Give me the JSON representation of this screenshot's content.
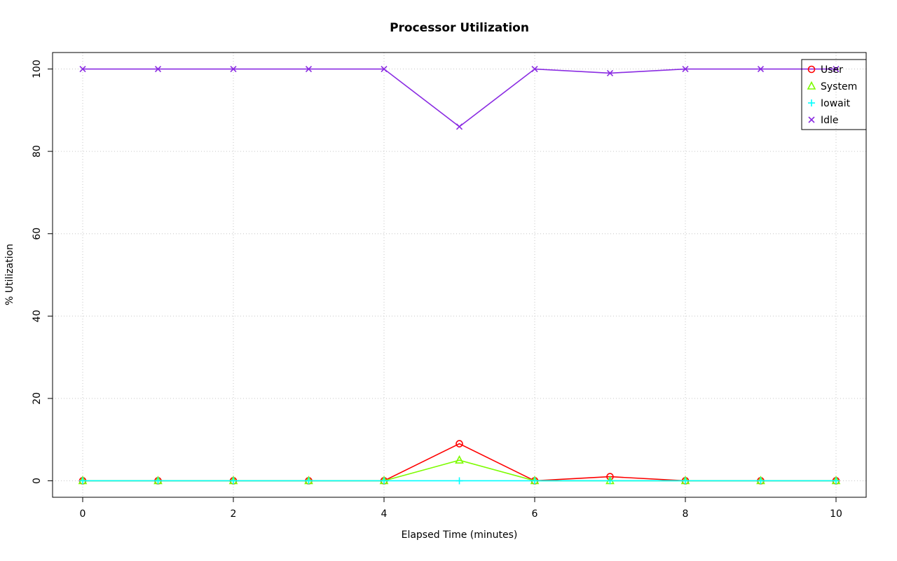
{
  "chart_data": {
    "type": "line",
    "title": "Processor Utilization",
    "xlabel": "Elapsed Time (minutes)",
    "ylabel": "% Utilization",
    "x": [
      0,
      1,
      2,
      3,
      4,
      5,
      6,
      7,
      8,
      9,
      10
    ],
    "series": [
      {
        "name": "User",
        "color": "#FF0000",
        "marker": "circle",
        "values": [
          0,
          0,
          0,
          0,
          0,
          9,
          0,
          1,
          0,
          0,
          0
        ]
      },
      {
        "name": "System",
        "color": "#7CFC00",
        "marker": "triangle",
        "values": [
          0,
          0,
          0,
          0,
          0,
          5,
          0,
          0,
          0,
          0,
          0
        ]
      },
      {
        "name": "Iowait",
        "color": "#00FFFF",
        "marker": "plus",
        "values": [
          0,
          0,
          0,
          0,
          0,
          0,
          0,
          0,
          0,
          0,
          0
        ]
      },
      {
        "name": "Idle",
        "color": "#8A2BE2",
        "marker": "x",
        "values": [
          100,
          100,
          100,
          100,
          100,
          86,
          100,
          99,
          100,
          100,
          100
        ]
      }
    ],
    "xticks": [
      0,
      2,
      4,
      6,
      8,
      10
    ],
    "yticks": [
      0,
      20,
      40,
      60,
      80,
      100
    ],
    "xlim": [
      0,
      10
    ],
    "ylim": [
      0,
      100
    ],
    "grid": true,
    "grid_color": "#C6C6C6",
    "axis_color": "#000000",
    "legend_position": "top-right"
  }
}
